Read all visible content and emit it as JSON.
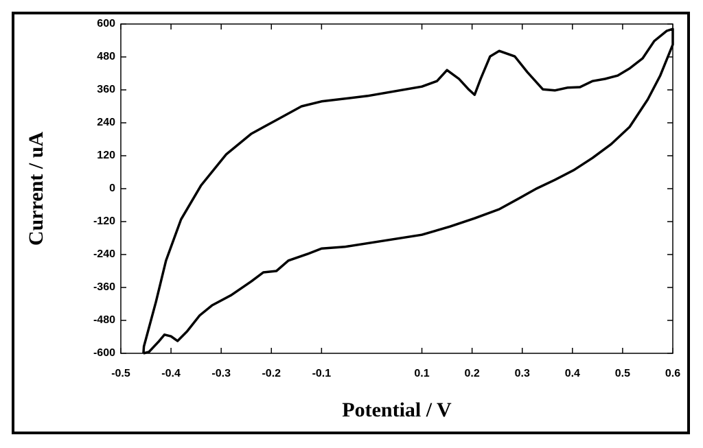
{
  "chart_data": {
    "type": "line",
    "x_label": "Potential / V",
    "y_label": "Current / uA",
    "color": "#000000",
    "xlim": [
      -0.5,
      0.6
    ],
    "xticks": [
      -0.5,
      -0.4,
      -0.3,
      -0.2,
      -0.1,
      0.1,
      0.2,
      0.3,
      0.4,
      0.5,
      0.6
    ],
    "ylim": [
      -600,
      600
    ],
    "yticks": [
      -600,
      -480,
      -360,
      -240,
      -120,
      0,
      120,
      240,
      360,
      480,
      600
    ],
    "x": [
      -0.455,
      -0.454,
      -0.43,
      -0.41,
      -0.38,
      -0.34,
      -0.29,
      -0.24,
      -0.19,
      -0.14,
      -0.1,
      -0.008,
      0.1,
      0.13,
      0.15,
      0.174,
      0.193,
      0.205,
      0.217,
      0.236,
      0.254,
      0.285,
      0.31,
      0.341,
      0.365,
      0.39,
      0.415,
      0.44,
      0.465,
      0.49,
      0.514,
      0.54,
      0.563,
      0.588,
      0.6,
      0.6,
      0.575,
      0.55,
      0.514,
      0.477,
      0.44,
      0.403,
      0.365,
      0.328,
      0.291,
      0.254,
      0.205,
      0.156,
      0.1,
      0.016,
      -0.054,
      -0.1,
      -0.128,
      -0.166,
      -0.19,
      -0.216,
      -0.24,
      -0.28,
      -0.318,
      -0.343,
      -0.368,
      -0.387,
      -0.4,
      -0.413,
      -0.425,
      -0.444,
      -0.455
    ],
    "values": [
      -600,
      -575,
      -412,
      -262,
      -112,
      12,
      125,
      200,
      250,
      300,
      318,
      338,
      372,
      392,
      432,
      400,
      362,
      342,
      400,
      482,
      502,
      482,
      425,
      362,
      358,
      368,
      370,
      392,
      400,
      412,
      438,
      475,
      538,
      575,
      582,
      525,
      412,
      325,
      225,
      162,
      112,
      68,
      32,
      0,
      -38,
      -75,
      -108,
      -138,
      -168,
      -192,
      -212,
      -218,
      -238,
      -262,
      -300,
      -305,
      -338,
      -388,
      -425,
      -462,
      -520,
      -555,
      -538,
      -532,
      -558,
      -595,
      -600
    ]
  }
}
